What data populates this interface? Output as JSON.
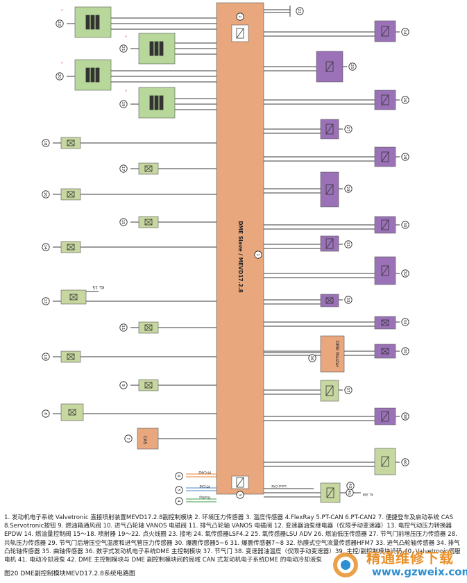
{
  "figure": {
    "caption": "1. 发动机电子系统 Valvetronic 直接喷射装置MEVD17.2.8副控制模块 2. 环境压力传感器 3. 温度传感器 4.FlexRay 5.PT-CAN 6.PT-CAN2 7. 便捷登车及启动系统 CAS 8.Servotronic按钮 9. 燃油箱通风阀 10. 进气凸轮轴 VANOS 电磁阀 11. 排气凸轮轴 VANOS 电磁阀 12. 变速器油泵继电器（仅限手动变速器）13. 电控气动压力转换器EPDW 14. 燃油量控制阀 15～18. 喷射器 19～22. 点火线圈 23. 接地 24. 氧传感器LSF4.2 25. 氧传感器LSU ADV 26. 燃油低压传感器 27. 节气门前增压压力传感器 28. 共轨压力传感器 29. 节气门后增压空气温度和进气管压力传感器 30. 爆震传感器5~6 31. 爆震传感器7~8 32. 热膜式空气流量传感器HFM7 33. 进气凸轮轴传感器 34. 排气凸轮轴传感器 35. 曲轴传感器 36. 数字式发动机电子系统DME 主控制模块 37. 节气门 38. 变速器油温度（仅限手动变速器）39. 主控/副控制模块设码 40. Valvetronic伺服电机 41. 电动冷却液泵 42. DME 主控制模块与 DME 副控制模块间的局域 CAN 式发动机电子系统DME 的电动冷却液泵",
    "title": "图20 DME副控制模块MEVD17.2.8系统电路图"
  },
  "diagram": {
    "ecu_label": "DME Slave / MEVD17.2.8",
    "master_label": "DME Master",
    "cas_label": "CAS",
    "kl15": "KL 15",
    "wire_labels": [
      "PT-CAN2",
      "PT-CAN",
      "FlexRay",
      "Lokal-CAN",
      "KL 30B"
    ],
    "markers": [
      "1",
      "2",
      "3",
      "4",
      "5",
      "6",
      "7",
      "8",
      "9",
      "10",
      "11",
      "12",
      "13",
      "14",
      "15",
      "16",
      "17",
      "18",
      "19",
      "20",
      "21",
      "22",
      "23",
      "24",
      "25",
      "26",
      "27",
      "28",
      "29",
      "30",
      "31",
      "32",
      "33",
      "34",
      "35",
      "36",
      "37",
      "38",
      "39",
      "40",
      "41",
      "42"
    ]
  },
  "colors": {
    "ecu": "#e8a77d",
    "master": "#e8a77d",
    "coil_box": "#b7d89a",
    "sensor_box": "#9b72b8",
    "actuator_box": "#c7d7a0",
    "line": "#3a3a3a"
  },
  "watermark": {
    "main": "精通维修下载",
    "url": "www.gzweix.com"
  }
}
